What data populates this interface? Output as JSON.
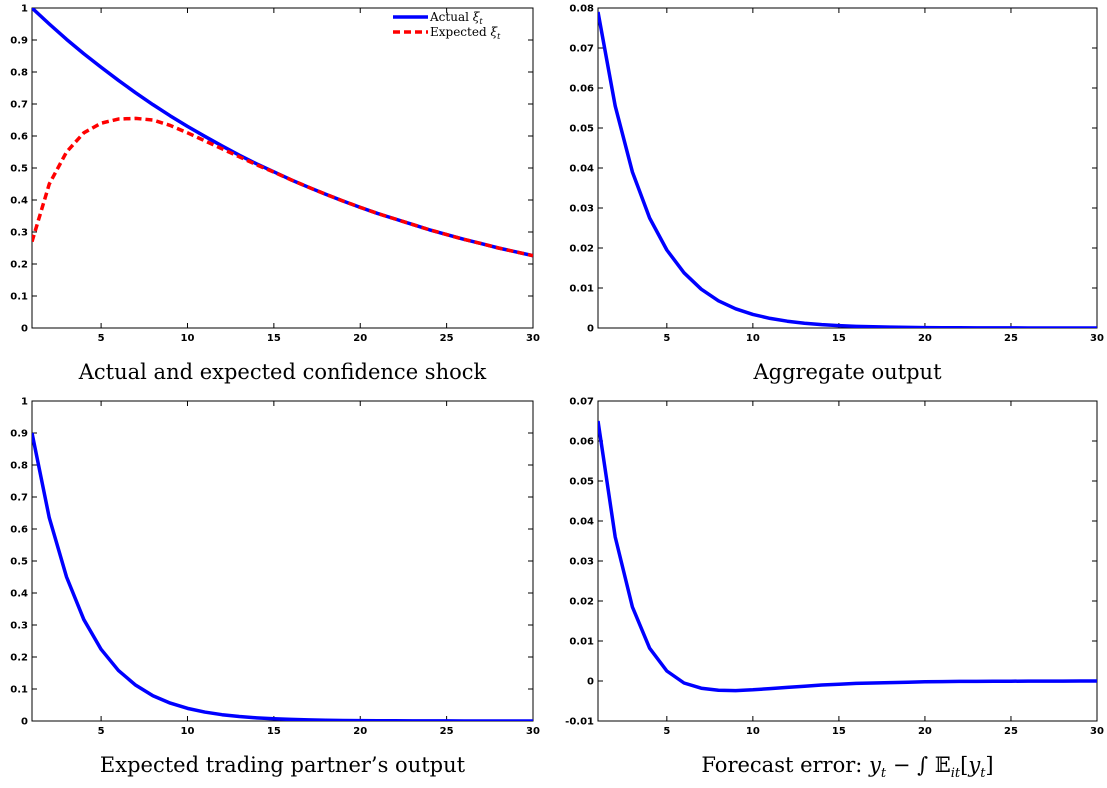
{
  "chart_data": [
    {
      "type": "line",
      "title": "",
      "caption": "Actual and expected confidence shock",
      "xlabel": "",
      "ylabel": "",
      "xlim": [
        1,
        30
      ],
      "ylim": [
        0,
        1
      ],
      "xticks": [
        5,
        10,
        15,
        20,
        25,
        30
      ],
      "xtick_labels": [
        "5",
        "10",
        "15",
        "20",
        "25",
        "30"
      ],
      "yticks": [
        0,
        0.1,
        0.2,
        0.3,
        0.4,
        0.5,
        0.6,
        0.7,
        0.8,
        0.9,
        1
      ],
      "ytick_labels": [
        "0",
        "0.1",
        "0.2",
        "0.3",
        "0.4",
        "0.5",
        "0.6",
        "0.7",
        "0.8",
        "0.9",
        "1"
      ],
      "grid": false,
      "legend_position": "top-right",
      "x": [
        1,
        2,
        3,
        4,
        5,
        6,
        7,
        8,
        9,
        10,
        11,
        12,
        13,
        14,
        15,
        16,
        17,
        18,
        19,
        20,
        21,
        22,
        23,
        24,
        25,
        26,
        27,
        28,
        29,
        30
      ],
      "series": [
        {
          "name": "Actual ξt",
          "legend_main": "Actual ",
          "legend_sym": "ξ",
          "legend_sub": "t",
          "color": "#0000ff",
          "style": "solid",
          "values": [
            1.0,
            0.95,
            0.902,
            0.857,
            0.815,
            0.774,
            0.735,
            0.698,
            0.663,
            0.63,
            0.599,
            0.569,
            0.54,
            0.513,
            0.488,
            0.463,
            0.44,
            0.418,
            0.397,
            0.377,
            0.358,
            0.341,
            0.324,
            0.307,
            0.292,
            0.277,
            0.264,
            0.25,
            0.238,
            0.226
          ]
        },
        {
          "name": "Expected ξt",
          "legend_main": "Expected ",
          "legend_sym": "ξ",
          "legend_sub": "t",
          "color": "#ff0000",
          "style": "dashed",
          "values": [
            0.27,
            0.45,
            0.55,
            0.61,
            0.64,
            0.653,
            0.655,
            0.65,
            0.633,
            0.61,
            0.585,
            0.56,
            0.535,
            0.51,
            0.487,
            0.463,
            0.44,
            0.418,
            0.397,
            0.377,
            0.358,
            0.341,
            0.324,
            0.307,
            0.292,
            0.277,
            0.264,
            0.25,
            0.238,
            0.226
          ]
        }
      ]
    },
    {
      "type": "line",
      "title": "",
      "caption": "Aggregate output",
      "xlabel": "",
      "ylabel": "",
      "xlim": [
        1,
        30
      ],
      "ylim": [
        0,
        0.08
      ],
      "xticks": [
        5,
        10,
        15,
        20,
        25,
        30
      ],
      "xtick_labels": [
        "5",
        "10",
        "15",
        "20",
        "25",
        "30"
      ],
      "yticks": [
        0,
        0.01,
        0.02,
        0.03,
        0.04,
        0.05,
        0.06,
        0.07,
        0.08
      ],
      "ytick_labels": [
        "0",
        "0.01",
        "0.02",
        "0.03",
        "0.04",
        "0.05",
        "0.06",
        "0.07",
        "0.08"
      ],
      "grid": false,
      "x": [
        1,
        2,
        3,
        4,
        5,
        6,
        7,
        8,
        9,
        10,
        11,
        12,
        13,
        14,
        15,
        16,
        17,
        18,
        19,
        20,
        21,
        22,
        23,
        24,
        25,
        26,
        27,
        28,
        29,
        30
      ],
      "series": [
        {
          "color": "#0000ff",
          "style": "solid",
          "values": [
            0.079,
            0.0555,
            0.039,
            0.0275,
            0.0195,
            0.0138,
            0.0097,
            0.0068,
            0.0048,
            0.0034,
            0.0024,
            0.0017,
            0.0012,
            0.00085,
            0.0006,
            0.00042,
            0.0003,
            0.00021,
            0.00015,
            0.0001,
            7e-05,
            5e-05,
            4e-05,
            3e-05,
            2e-05,
            1e-05,
            1e-05,
            0.0,
            0.0,
            0.0
          ]
        }
      ]
    },
    {
      "type": "line",
      "title": "",
      "caption": "Expected trading partner’s output",
      "xlabel": "",
      "ylabel": "",
      "xlim": [
        1,
        30
      ],
      "ylim": [
        0,
        1
      ],
      "xticks": [
        5,
        10,
        15,
        20,
        25,
        30
      ],
      "xtick_labels": [
        "5",
        "10",
        "15",
        "20",
        "25",
        "30"
      ],
      "yticks": [
        0,
        0.1,
        0.2,
        0.3,
        0.4,
        0.5,
        0.6,
        0.7,
        0.8,
        0.9,
        1
      ],
      "ytick_labels": [
        "0",
        "0.1",
        "0.2",
        "0.3",
        "0.4",
        "0.5",
        "0.6",
        "0.7",
        "0.8",
        "0.9",
        "1"
      ],
      "grid": false,
      "x": [
        1,
        2,
        3,
        4,
        5,
        6,
        7,
        8,
        9,
        10,
        11,
        12,
        13,
        14,
        15,
        16,
        17,
        18,
        19,
        20,
        21,
        22,
        23,
        24,
        25,
        26,
        27,
        28,
        29,
        30
      ],
      "series": [
        {
          "color": "#0000ff",
          "style": "solid",
          "values": [
            0.9,
            0.635,
            0.45,
            0.317,
            0.224,
            0.158,
            0.112,
            0.079,
            0.056,
            0.0395,
            0.0279,
            0.0197,
            0.0139,
            0.0098,
            0.0069,
            0.0049,
            0.0035,
            0.0024,
            0.0017,
            0.0012,
            0.00086,
            0.0006,
            0.00043,
            0.0003,
            0.00021,
            0.00015,
            0.00011,
            7e-05,
            5e-05,
            4e-05
          ]
        }
      ]
    },
    {
      "type": "line",
      "title": "",
      "caption": "Forecast error: yt − ∫ 𝔼it[yt]",
      "caption_parts": {
        "prefix": "Forecast error:  ",
        "y": "y",
        "t": "t",
        "op": " − ∫ ",
        "E": "𝔼",
        "it": "it",
        "open": "[",
        "close": "]"
      },
      "xlabel": "",
      "ylabel": "",
      "xlim": [
        1,
        30
      ],
      "ylim": [
        -0.01,
        0.07
      ],
      "xticks": [
        5,
        10,
        15,
        20,
        25,
        30
      ],
      "xtick_labels": [
        "5",
        "10",
        "15",
        "20",
        "25",
        "30"
      ],
      "yticks": [
        -0.01,
        0,
        0.01,
        0.02,
        0.03,
        0.04,
        0.05,
        0.06,
        0.07
      ],
      "ytick_labels": [
        "-0.01",
        "0",
        "0.01",
        "0.02",
        "0.03",
        "0.04",
        "0.05",
        "0.06",
        "0.07"
      ],
      "grid": false,
      "x": [
        1,
        2,
        3,
        4,
        5,
        6,
        7,
        8,
        9,
        10,
        11,
        12,
        13,
        14,
        15,
        16,
        17,
        18,
        19,
        20,
        21,
        22,
        23,
        24,
        25,
        26,
        27,
        28,
        29,
        30
      ],
      "series": [
        {
          "color": "#0000ff",
          "style": "solid",
          "values": [
            0.065,
            0.036,
            0.0185,
            0.0082,
            0.0025,
            -0.0005,
            -0.0018,
            -0.0023,
            -0.0024,
            -0.0022,
            -0.0019,
            -0.0016,
            -0.0013,
            -0.001,
            -0.0008,
            -0.0006,
            -0.0005,
            -0.0004,
            -0.0003,
            -0.0002,
            -0.00015,
            -0.0001,
            -8e-05,
            -6e-05,
            -5e-05,
            -4e-05,
            -3e-05,
            -2e-05,
            -1e-05,
            0.0
          ]
        }
      ]
    }
  ]
}
